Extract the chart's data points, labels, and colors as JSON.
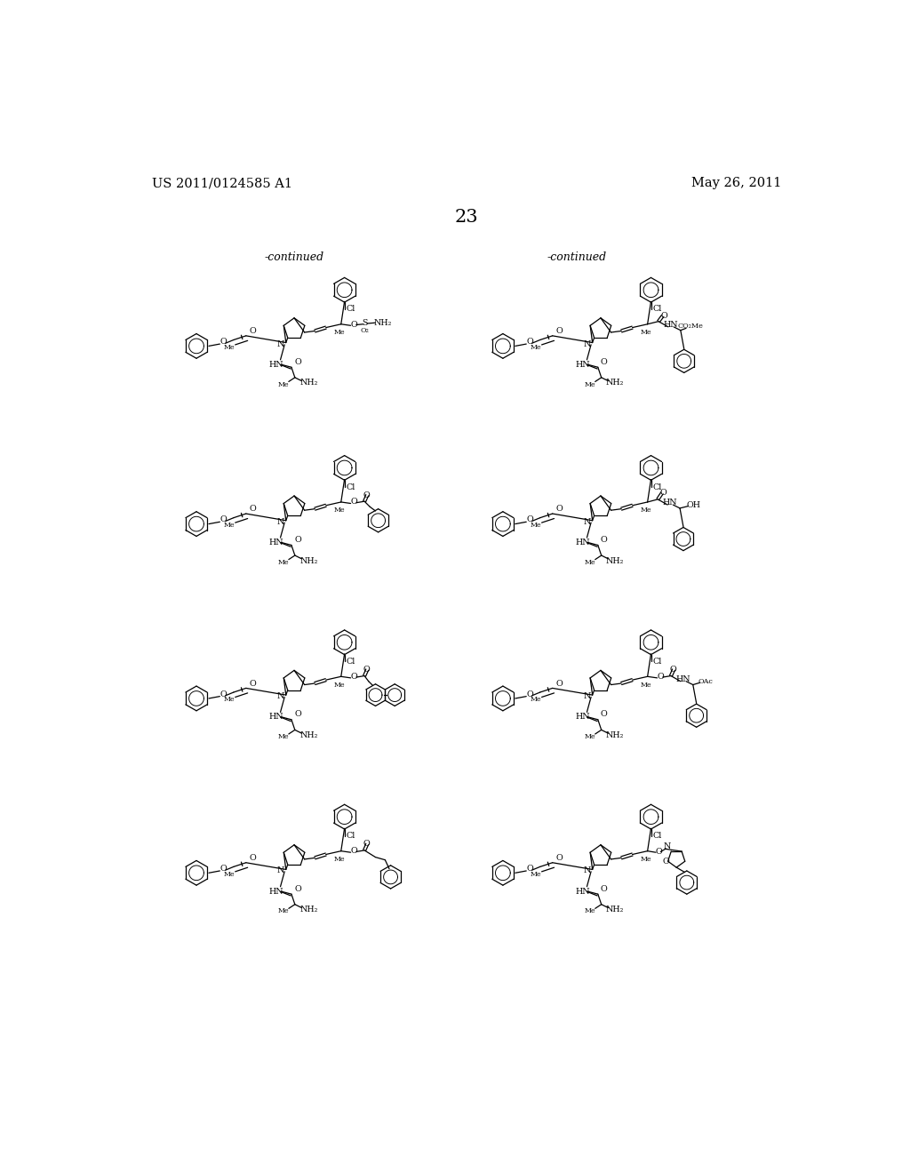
{
  "background_color": "#ffffff",
  "page_number": "23",
  "header_left": "US 2011/0124585 A1",
  "header_right": "May 26, 2011",
  "continued_left": "-continued",
  "continued_right": "-continued",
  "figsize": [
    10.24,
    13.2
  ],
  "dpi": 100
}
